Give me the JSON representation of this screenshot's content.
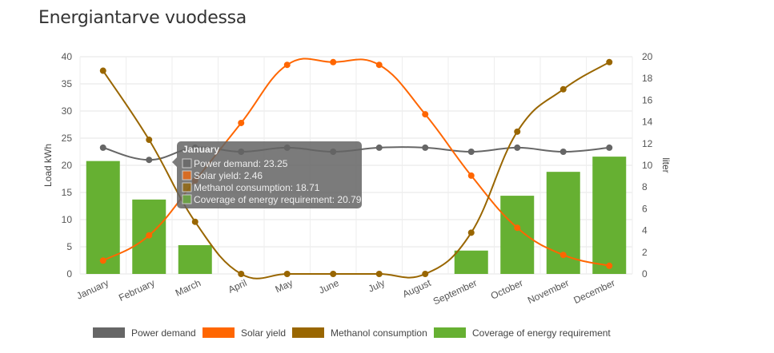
{
  "title": "Energiantarve vuodessa",
  "chart_data": {
    "type": "bar+line",
    "title": "Energiantarve vuodessa",
    "categories": [
      "January",
      "February",
      "March",
      "April",
      "May",
      "June",
      "July",
      "August",
      "September",
      "October",
      "November",
      "December"
    ],
    "ylabel": "Load kWh",
    "ylim": [
      0,
      40
    ],
    "yticks": [
      0,
      5,
      10,
      15,
      20,
      25,
      30,
      35,
      40
    ],
    "y2label": "liter",
    "y2lim": [
      0,
      20
    ],
    "y2ticks": [
      0,
      2,
      4,
      6,
      8,
      10,
      12,
      14,
      16,
      18,
      20
    ],
    "grid": true,
    "legend": "bottom",
    "series": [
      {
        "name": "Power demand",
        "type": "line",
        "axis": "left",
        "color": "#666666",
        "values": [
          23.25,
          21,
          23.25,
          22.5,
          23.25,
          22.5,
          23.25,
          23.25,
          22.5,
          23.25,
          22.5,
          23.25
        ]
      },
      {
        "name": "Solar yield",
        "type": "line",
        "axis": "left",
        "color": "#ff6600",
        "values": [
          2.46,
          7.1,
          17.2,
          27.8,
          38.5,
          39,
          38.5,
          29.4,
          18.1,
          8.5,
          3.5,
          1.5
        ]
      },
      {
        "name": "Methanol consumption",
        "type": "line",
        "axis": "right",
        "color": "#996600",
        "values": [
          18.71,
          12.35,
          4.8,
          0,
          0,
          0,
          0,
          0,
          3.8,
          13.1,
          17,
          19.5
        ]
      },
      {
        "name": "Coverage of energy requirement",
        "type": "bar",
        "axis": "left",
        "color": "#66b032",
        "values": [
          20.79,
          13.7,
          5.3,
          0,
          0,
          0,
          0,
          0,
          4.3,
          14.4,
          18.8,
          21.6
        ]
      }
    ],
    "tooltip": {
      "title": "January",
      "lines": [
        "Power demand: 23.25",
        "Solar yield: 2.46",
        "Methanol consumption: 18.71",
        "Coverage of energy requirement: 20.79"
      ]
    }
  }
}
